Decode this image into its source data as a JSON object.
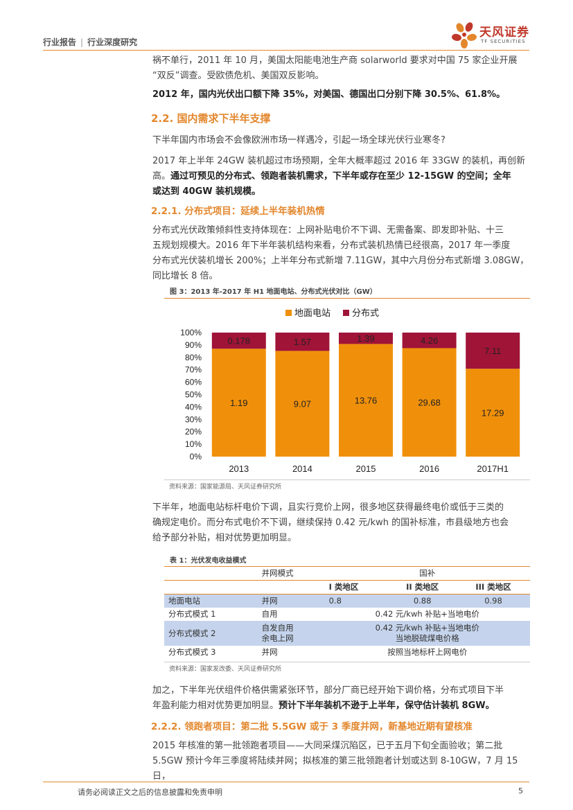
{
  "header": {
    "left_a": "行业报告",
    "divider": "|",
    "left_b": "行业深度研究",
    "logo_cn": "天风证券",
    "logo_en": "TF SECURITIES"
  },
  "body": {
    "p_top_1": "祸不单行，2011 年 10 月，美国太阳能电池生产商 solarworld 要求对中国 75 家企业开展",
    "p_top_2": "“双反”调查。受欧债危机、美国双反影响。",
    "p_bold_2012": "2012 年，国内光伏出口额下降 35%，对美国、德国出口分别下降 30.5%、61.8%。",
    "h_2_2": "2.2. 国内需求下半年支撑",
    "p_q": "下半年国内市场会不会像欧洲市场一样遇冷，引起一场全球光伏行业寒冬?",
    "p_2017_a": "2017 年上半年 24GW 装机超过市场预期，全年大概率超过 2016 年 33GW 的装机，再创新",
    "p_2017_b_plain": "高。",
    "p_2017_b_bold": "通过可预见的分布式、领跑者装机需求，下半年或存在至少 12-15GW 的空间；全年",
    "p_2017_c_bold": "或达到 40GW 装机规模。",
    "h_2_2_1": "2.2.1. 分布式项目：延续上半年装机热情",
    "p_dist_1": "分布式光伏政策倾斜性支持体现在：上网补贴电价不下调、无需备案、即发即补贴、十三",
    "p_dist_2": "五规划规模大。2016 年下半年装机结构来看，分布式装机热情已经很高，2017 年一季度",
    "p_dist_3": "分布式光伏装机增长 200%；上半年分布式新增 7.11GW，其中六月份分布式新增 3.08GW，",
    "p_dist_4": "同比增长 8 倍。",
    "fig_title": "图 3：2013 年-2017 年 H1 地面电站、分布式光伏对比（GW）",
    "fig_source": "资料来源：国家能源局、天风证券研究所",
    "p_second_1": "下半年，地面电站标杆电价下调，且实行竞价上网，很多地区获得最终电价或低于三类的",
    "p_second_2": "确规定电价。而分布式电价不下调，继续保持 0.42 元/kwh 的国补标准，市县级地方也会",
    "p_second_3": "给予部分补贴，相对优势更加明显。",
    "tbl_title": "表 1：光伏发电收益模式",
    "tbl_source": "资料来源：国家发改委、天风证券研究所",
    "p_add_1": "加之，下半年光伏组件价格供需紧张环节，部分厂商已经开始下调价格，分布式项目下半",
    "p_add_2_plain": "年盈利能力相对优势更加明显。",
    "p_add_2_bold": "预计下半年装机不逊于上半年，保守估计装机 8GW。",
    "h_2_2_2": "2.2.2. 领跑者项目：第二批 5.5GW 或于 3 季度并网，新基地近期有望核准",
    "p_lead_1": "2015 年核准的第一批领跑者项目——大同采煤沉陷区，已于五月下旬全面验收；第二批",
    "p_lead_2": "5.5GW 预计今年三季度将陆续并网；拟核准的第三批领跑者计划或达到 8-10GW，7 月 15 日，"
  },
  "table": {
    "h_mode": "并网模式",
    "h_subsidy": "国补",
    "h_zone1": "I 类地区",
    "h_zone2": "II 类地区",
    "h_zone3": "III 类地区",
    "r1_name": "地面电站",
    "r1_mode": "并网",
    "r1_z1": "0.8",
    "r1_z2": "0.88",
    "r1_z3": "0.98",
    "r2_name": "分布式模式 1",
    "r2_mode": "自用",
    "r2_val": "0.42 元/kwh 补贴+当地电价",
    "r3_name": "分布式模式 2",
    "r3_mode_a": "自发自用",
    "r3_mode_b": "余电上网",
    "r3_val_a": "0.42 元/kwh 补贴+当地电价",
    "r3_val_b": "当地脱硫煤电价格",
    "r4_name": "分布式模式 3",
    "r4_mode": "并网",
    "r4_val": "按照当地标杆上网电价"
  },
  "footer": {
    "disclaimer": "请务必阅读正文之后的信息披露和免责申明",
    "page": "5"
  },
  "chart_data": {
    "type": "bar",
    "stacked": "percent",
    "categories": [
      "2013",
      "2014",
      "2015",
      "2016",
      "2017H1"
    ],
    "series": [
      {
        "name": "地面电站",
        "color": "#F0900A",
        "values": [
          1.19,
          9.07,
          13.76,
          29.68,
          17.29
        ]
      },
      {
        "name": "分布式",
        "color": "#A01437",
        "values": [
          0.178,
          1.57,
          1.39,
          4.26,
          7.11
        ]
      }
    ],
    "data_labels": {
      "ground": [
        "1.19",
        "9.07",
        "13.76",
        "29.68",
        "17.29"
      ],
      "distributed": [
        "0.178",
        "1.57",
        "1.39",
        "4.26",
        "7.11"
      ]
    },
    "ylim": [
      0,
      100
    ],
    "yticks": [
      "0%",
      "10%",
      "20%",
      "30%",
      "40%",
      "50%",
      "60%",
      "70%",
      "80%",
      "90%",
      "100%"
    ],
    "legend": "top",
    "grid": false
  }
}
